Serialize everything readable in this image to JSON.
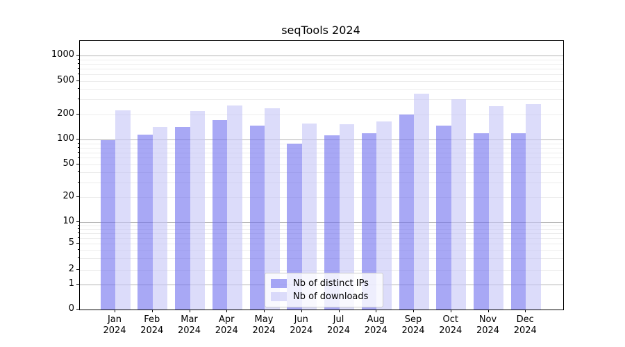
{
  "title": "seqTools 2024",
  "colors": {
    "distinct_ips": "rgba(110,110,238,0.6)",
    "downloads": "rgba(197,197,247,0.6)",
    "grid_major": "#b3b3b3",
    "grid_minor": "#ececec",
    "spine": "#000000"
  },
  "chart_data": {
    "type": "bar",
    "title": "seqTools 2024",
    "categories": [
      "Jan",
      "Feb",
      "Mar",
      "Apr",
      "May",
      "Jun",
      "Jul",
      "Aug",
      "Sep",
      "Oct",
      "Nov",
      "Dec"
    ],
    "category_year": "2024",
    "series": [
      {
        "name": "Nb of distinct IPs",
        "color": "rgba(110,110,238,0.6)",
        "values": [
          98,
          114,
          140,
          172,
          147,
          90,
          112,
          119,
          198,
          148,
          120,
          120
        ]
      },
      {
        "name": "Nb of downloads",
        "color": "rgba(197,197,247,0.6)",
        "values": [
          224,
          142,
          219,
          252,
          234,
          154,
          151,
          165,
          350,
          304,
          249,
          265
        ]
      }
    ],
    "xlabel": "",
    "ylabel": "",
    "y_scale": "symlog",
    "y_ticks": [
      0,
      1,
      2,
      5,
      10,
      20,
      50,
      100,
      200,
      500,
      1000
    ],
    "y_minor_ticks": [
      3,
      4,
      6,
      7,
      8,
      9,
      30,
      40,
      60,
      70,
      80,
      90,
      300,
      400,
      600,
      700,
      800,
      900
    ],
    "ylim": [
      0,
      1400
    ],
    "grid": "horizontal major+minor",
    "legend_position": "lower center"
  }
}
